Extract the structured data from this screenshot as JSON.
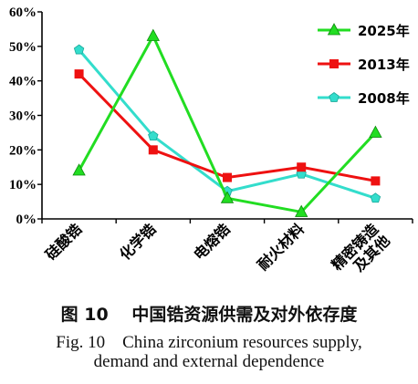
{
  "chart_data": {
    "type": "line",
    "categories": [
      "硅酸锆",
      "化学锆",
      "电熔锆",
      "耐火材料",
      "精密铸造及其他"
    ],
    "category_lines": [
      [
        "硅酸锆"
      ],
      [
        "化学锆"
      ],
      [
        "电熔锆"
      ],
      [
        "耐火材料"
      ],
      [
        "精密铸造",
        "及其他"
      ]
    ],
    "yticks": [
      "0%",
      "10%",
      "20%",
      "30%",
      "40%",
      "50%",
      "60%"
    ],
    "ylim": [
      0,
      60
    ],
    "grid": false,
    "legend_position": "top-right",
    "series": [
      {
        "name": "2025年",
        "color": "#22dd22",
        "marker": "triangle",
        "values": [
          14,
          53,
          6,
          2,
          25
        ]
      },
      {
        "name": "2013年",
        "color": "#ee1111",
        "marker": "square",
        "values": [
          42,
          20,
          12,
          15,
          11
        ]
      },
      {
        "name": "2008年",
        "color": "#33ddcc",
        "marker": "pentagon",
        "values": [
          49,
          24,
          8,
          13,
          6
        ]
      }
    ]
  },
  "caption": {
    "zh": "图 10　 中国锆资源供需及对外依存度",
    "en_line1": "Fig. 10　China zirconium resources supply,",
    "en_line2": "demand and external dependence"
  }
}
